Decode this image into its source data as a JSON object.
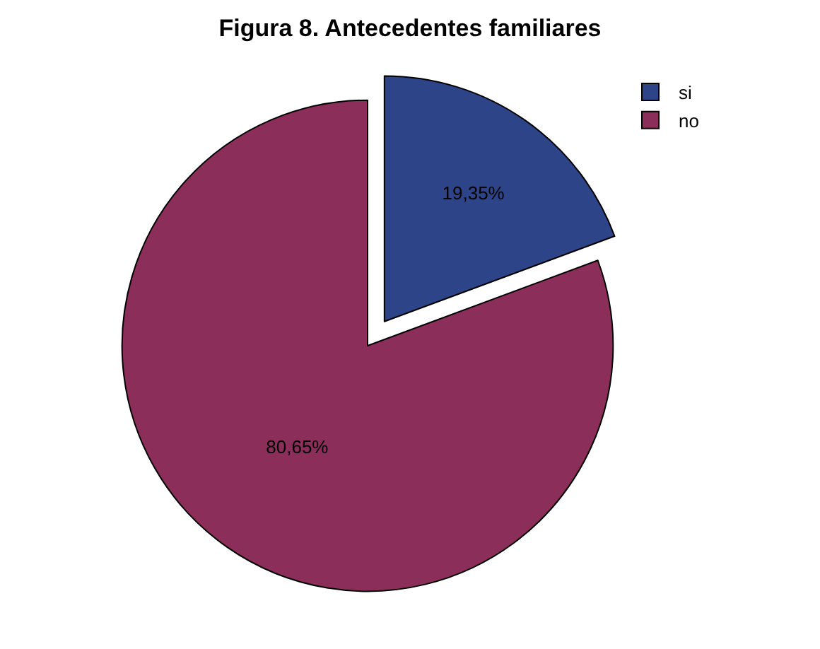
{
  "chart_data": {
    "type": "pie",
    "title": "Figura 8. Antecedentes familiares",
    "categories": [
      "si",
      "no"
    ],
    "values": [
      19.35,
      80.65
    ],
    "value_labels": [
      "19,35%",
      "80,65%"
    ],
    "colors": [
      "#2e4488",
      "#8b2e5a"
    ],
    "legend": "top right"
  }
}
